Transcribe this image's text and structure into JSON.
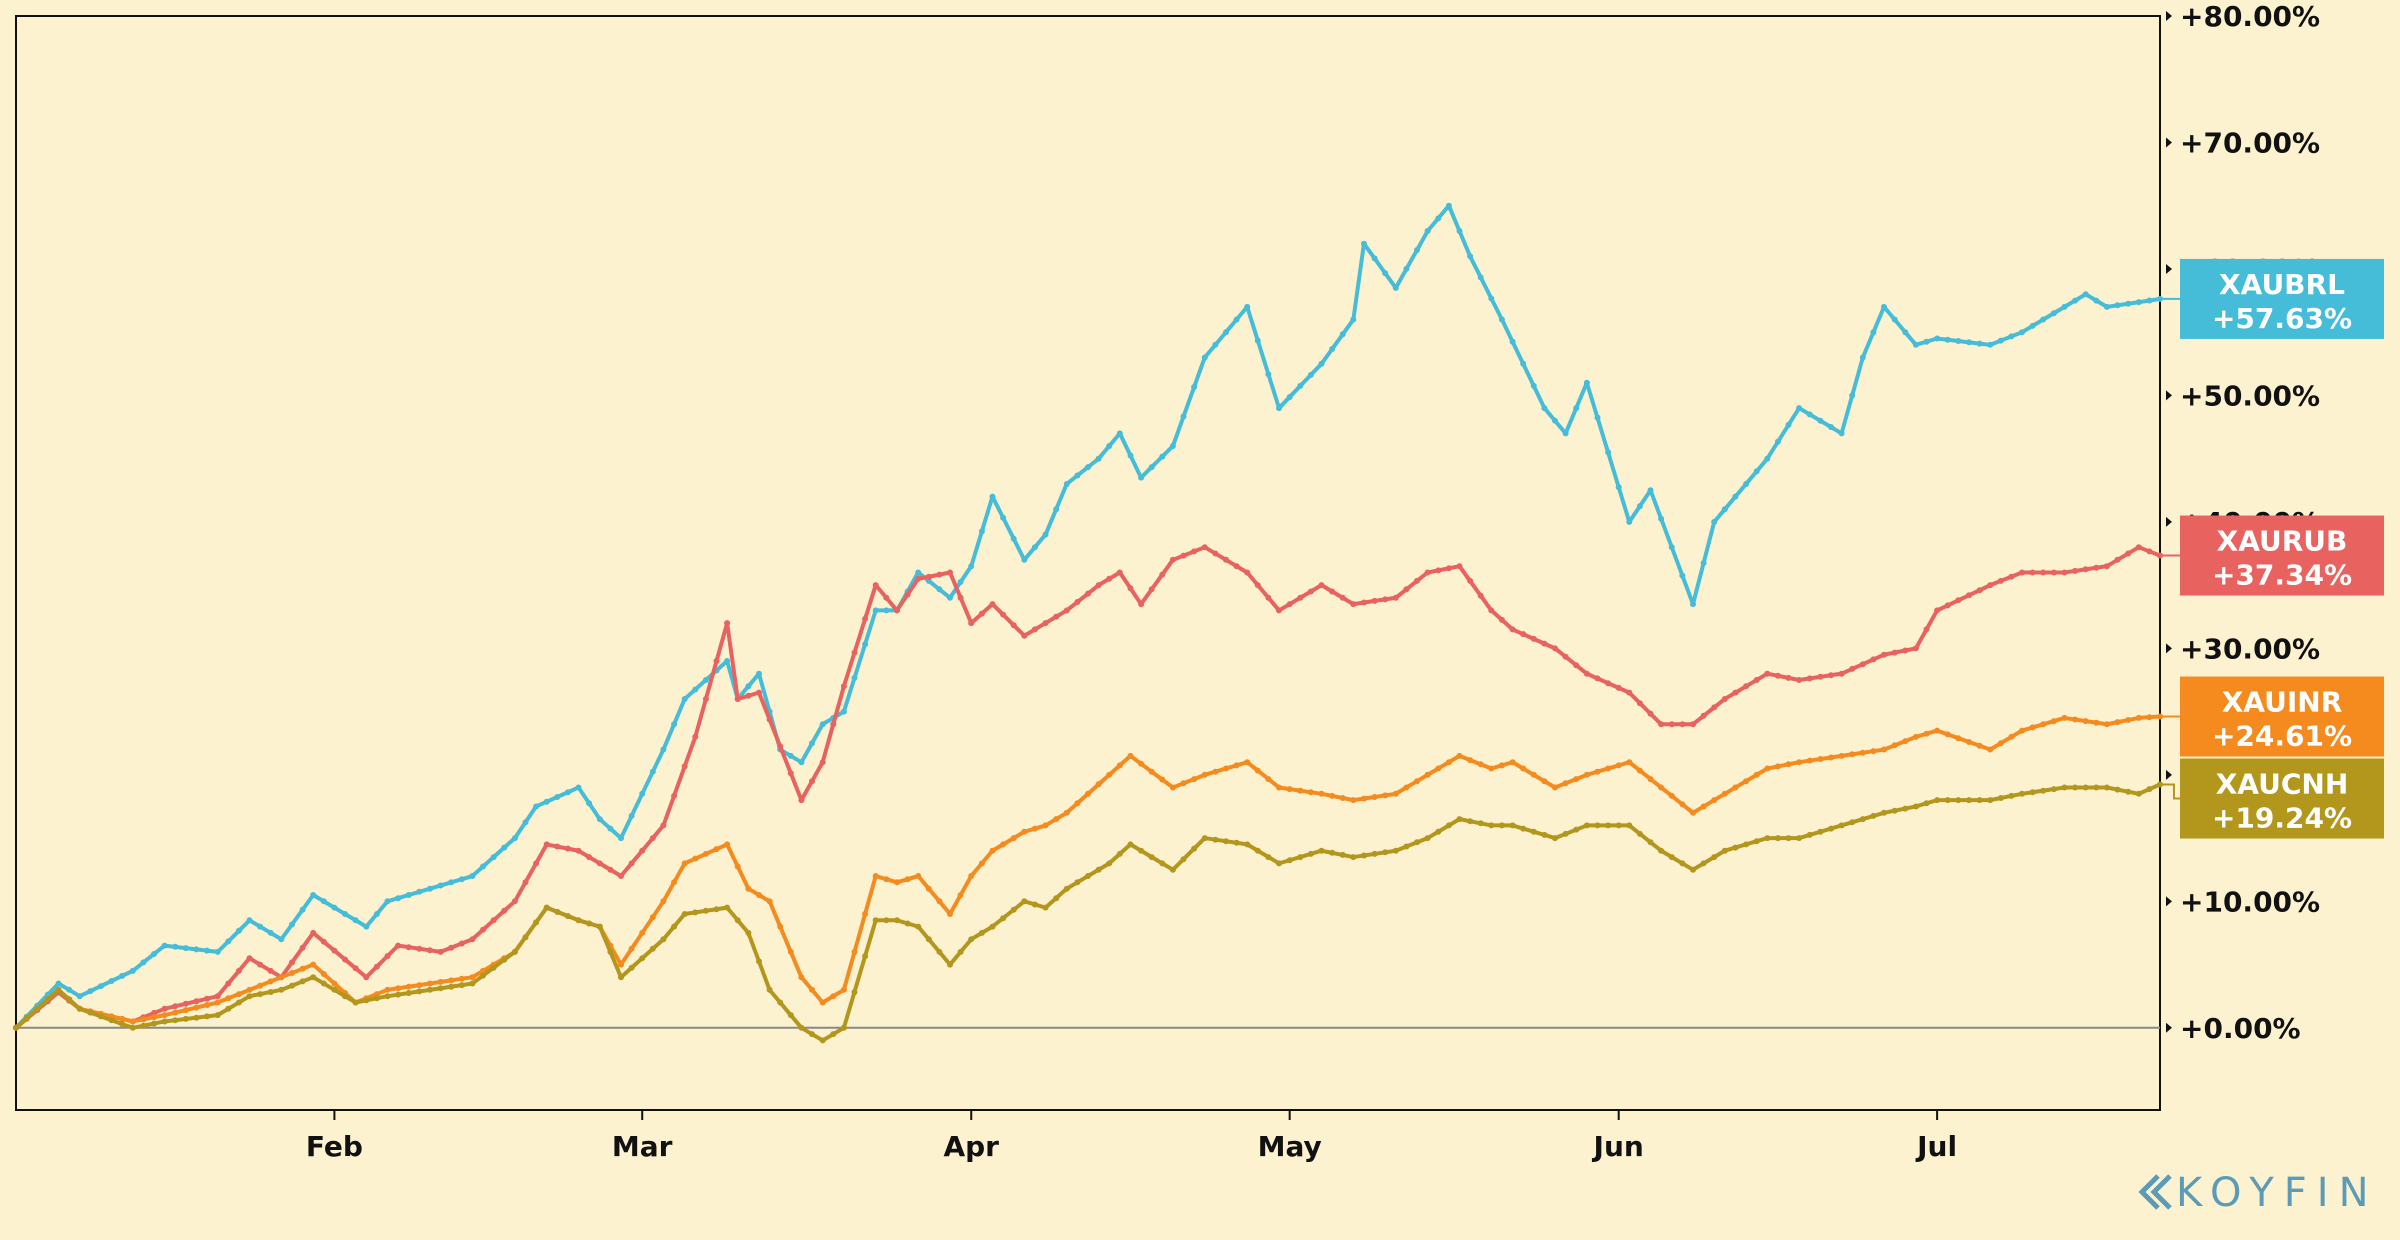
{
  "colors": {
    "background": "#fdf2cf",
    "plot_border": "#111111",
    "zero_line": "#888888",
    "XAUBRL": "#45bcd8",
    "XAURUB": "#e8625f",
    "XAUINR": "#f58a1f",
    "XAUCNH": "#b3961c",
    "logo": "#5b9bb8"
  },
  "branding": {
    "logo_text": "KOYFIN",
    "logo_icon": "koyfin-chevron-icon"
  },
  "chart_data": {
    "type": "line",
    "y_unit": "percent change",
    "ylim": [
      -6.5,
      80
    ],
    "y_ticks": [
      0,
      10,
      20,
      30,
      40,
      50,
      60,
      70,
      80
    ],
    "y_tick_labels": [
      "+0.00%",
      "+10.00%",
      "+20.00%",
      "+30.00%",
      "+40.00%",
      "+50.00%",
      "+60.00%",
      "+70.00%",
      "+80.00%"
    ],
    "y_axis_side": "right",
    "x_range": [
      "2020-01-02",
      "2020-07-22"
    ],
    "x_ticks": [
      {
        "date": "2020-02-01",
        "label": "Feb"
      },
      {
        "date": "2020-03-01",
        "label": "Mar"
      },
      {
        "date": "2020-04-01",
        "label": "Apr"
      },
      {
        "date": "2020-05-01",
        "label": "May"
      },
      {
        "date": "2020-06-01",
        "label": "Jun"
      },
      {
        "date": "2020-07-01",
        "label": "Jul"
      }
    ],
    "zero_line": true,
    "grid": false,
    "legend": "end-of-line tags on right axis",
    "series": [
      {
        "name": "XAUBRL",
        "last_label": "+57.63%",
        "last": 57.63,
        "points": [
          [
            "2020-01-02",
            0
          ],
          [
            "2020-01-06",
            3.5
          ],
          [
            "2020-01-08",
            2.5
          ],
          [
            "2020-01-13",
            4.5
          ],
          [
            "2020-01-16",
            6.5
          ],
          [
            "2020-01-21",
            6
          ],
          [
            "2020-01-24",
            8.5
          ],
          [
            "2020-01-27",
            7
          ],
          [
            "2020-01-30",
            10.5
          ],
          [
            "2020-02-04",
            8
          ],
          [
            "2020-02-06",
            10
          ],
          [
            "2020-02-10",
            11
          ],
          [
            "2020-02-14",
            12
          ],
          [
            "2020-02-18",
            15
          ],
          [
            "2020-02-20",
            17.5
          ],
          [
            "2020-02-24",
            19
          ],
          [
            "2020-02-26",
            16.5
          ],
          [
            "2020-02-28",
            15
          ],
          [
            "2020-03-03",
            22
          ],
          [
            "2020-03-05",
            26
          ],
          [
            "2020-03-09",
            29
          ],
          [
            "2020-03-10",
            26
          ],
          [
            "2020-03-12",
            28
          ],
          [
            "2020-03-14",
            22
          ],
          [
            "2020-03-16",
            21
          ],
          [
            "2020-03-18",
            24
          ],
          [
            "2020-03-20",
            25
          ],
          [
            "2020-03-23",
            33
          ],
          [
            "2020-03-25",
            33
          ],
          [
            "2020-03-27",
            36
          ],
          [
            "2020-03-30",
            34
          ],
          [
            "2020-04-01",
            36.5
          ],
          [
            "2020-04-03",
            42
          ],
          [
            "2020-04-06",
            37
          ],
          [
            "2020-04-08",
            39
          ],
          [
            "2020-04-10",
            43
          ],
          [
            "2020-04-13",
            45
          ],
          [
            "2020-04-15",
            47
          ],
          [
            "2020-04-17",
            43.5
          ],
          [
            "2020-04-20",
            46
          ],
          [
            "2020-04-23",
            53
          ],
          [
            "2020-04-27",
            57
          ],
          [
            "2020-04-30",
            49
          ],
          [
            "2020-05-04",
            52.5
          ],
          [
            "2020-05-07",
            56
          ],
          [
            "2020-05-08",
            62
          ],
          [
            "2020-05-11",
            58.5
          ],
          [
            "2020-05-14",
            63
          ],
          [
            "2020-05-16",
            65
          ],
          [
            "2020-05-18",
            61
          ],
          [
            "2020-05-21",
            56
          ],
          [
            "2020-05-25",
            49
          ],
          [
            "2020-05-27",
            47
          ],
          [
            "2020-05-29",
            51
          ],
          [
            "2020-06-02",
            40
          ],
          [
            "2020-06-04",
            42.5
          ],
          [
            "2020-06-08",
            33.5
          ],
          [
            "2020-06-10",
            40
          ],
          [
            "2020-06-15",
            45
          ],
          [
            "2020-06-18",
            49
          ],
          [
            "2020-06-22",
            47
          ],
          [
            "2020-06-24",
            53
          ],
          [
            "2020-06-26",
            57
          ],
          [
            "2020-06-29",
            54
          ],
          [
            "2020-07-01",
            54.5
          ],
          [
            "2020-07-06",
            54
          ],
          [
            "2020-07-09",
            55
          ],
          [
            "2020-07-13",
            57
          ],
          [
            "2020-07-15",
            58
          ],
          [
            "2020-07-17",
            57
          ],
          [
            "2020-07-22",
            57.63
          ]
        ]
      },
      {
        "name": "XAURUB",
        "last_label": "+37.34%",
        "last": 37.34,
        "points": [
          [
            "2020-01-02",
            0
          ],
          [
            "2020-01-06",
            2.8
          ],
          [
            "2020-01-08",
            1.5
          ],
          [
            "2020-01-13",
            0.5
          ],
          [
            "2020-01-16",
            1.5
          ],
          [
            "2020-01-21",
            2.5
          ],
          [
            "2020-01-24",
            5.5
          ],
          [
            "2020-01-27",
            4
          ],
          [
            "2020-01-30",
            7.5
          ],
          [
            "2020-02-04",
            4
          ],
          [
            "2020-02-07",
            6.5
          ],
          [
            "2020-02-11",
            6
          ],
          [
            "2020-02-14",
            7
          ],
          [
            "2020-02-18",
            10
          ],
          [
            "2020-02-21",
            14.5
          ],
          [
            "2020-02-24",
            14
          ],
          [
            "2020-02-26",
            13
          ],
          [
            "2020-02-28",
            12
          ],
          [
            "2020-03-03",
            16
          ],
          [
            "2020-03-06",
            23
          ],
          [
            "2020-03-09",
            32
          ],
          [
            "2020-03-10",
            26
          ],
          [
            "2020-03-12",
            26.5
          ],
          [
            "2020-03-16",
            18
          ],
          [
            "2020-03-18",
            21
          ],
          [
            "2020-03-20",
            27
          ],
          [
            "2020-03-23",
            35
          ],
          [
            "2020-03-25",
            33
          ],
          [
            "2020-03-27",
            35.5
          ],
          [
            "2020-03-30",
            36
          ],
          [
            "2020-04-01",
            32
          ],
          [
            "2020-04-03",
            33.5
          ],
          [
            "2020-04-06",
            31
          ],
          [
            "2020-04-08",
            32
          ],
          [
            "2020-04-10",
            33
          ],
          [
            "2020-04-13",
            35
          ],
          [
            "2020-04-15",
            36
          ],
          [
            "2020-04-17",
            33.5
          ],
          [
            "2020-04-20",
            37
          ],
          [
            "2020-04-23",
            38
          ],
          [
            "2020-04-27",
            36
          ],
          [
            "2020-04-30",
            33
          ],
          [
            "2020-05-04",
            35
          ],
          [
            "2020-05-07",
            33.5
          ],
          [
            "2020-05-11",
            34
          ],
          [
            "2020-05-14",
            36
          ],
          [
            "2020-05-17",
            36.5
          ],
          [
            "2020-05-20",
            33
          ],
          [
            "2020-05-22",
            31.5
          ],
          [
            "2020-05-26",
            30
          ],
          [
            "2020-05-29",
            28
          ],
          [
            "2020-06-02",
            26.5
          ],
          [
            "2020-06-05",
            24
          ],
          [
            "2020-06-08",
            24
          ],
          [
            "2020-06-11",
            26
          ],
          [
            "2020-06-15",
            28
          ],
          [
            "2020-06-18",
            27.5
          ],
          [
            "2020-06-22",
            28
          ],
          [
            "2020-06-26",
            29.5
          ],
          [
            "2020-06-29",
            30
          ],
          [
            "2020-07-01",
            33
          ],
          [
            "2020-07-06",
            35
          ],
          [
            "2020-07-09",
            36
          ],
          [
            "2020-07-13",
            36
          ],
          [
            "2020-07-17",
            36.5
          ],
          [
            "2020-07-20",
            38
          ],
          [
            "2020-07-22",
            37.34
          ]
        ]
      },
      {
        "name": "XAUINR",
        "last_label": "+24.61%",
        "last": 24.61,
        "points": [
          [
            "2020-01-02",
            0
          ],
          [
            "2020-01-06",
            3
          ],
          [
            "2020-01-08",
            1.5
          ],
          [
            "2020-01-13",
            0.5
          ],
          [
            "2020-01-16",
            1
          ],
          [
            "2020-01-21",
            2
          ],
          [
            "2020-01-24",
            3
          ],
          [
            "2020-01-27",
            4
          ],
          [
            "2020-01-30",
            5
          ],
          [
            "2020-02-03",
            2
          ],
          [
            "2020-02-06",
            3
          ],
          [
            "2020-02-10",
            3.5
          ],
          [
            "2020-02-14",
            4
          ],
          [
            "2020-02-18",
            6
          ],
          [
            "2020-02-21",
            9.5
          ],
          [
            "2020-02-24",
            8.5
          ],
          [
            "2020-02-26",
            8
          ],
          [
            "2020-02-28",
            5
          ],
          [
            "2020-03-03",
            10
          ],
          [
            "2020-03-05",
            13
          ],
          [
            "2020-03-09",
            14.5
          ],
          [
            "2020-03-11",
            11
          ],
          [
            "2020-03-13",
            10
          ],
          [
            "2020-03-16",
            4
          ],
          [
            "2020-03-18",
            2
          ],
          [
            "2020-03-20",
            3
          ],
          [
            "2020-03-23",
            12
          ],
          [
            "2020-03-25",
            11.5
          ],
          [
            "2020-03-27",
            12
          ],
          [
            "2020-03-30",
            9
          ],
          [
            "2020-04-01",
            12
          ],
          [
            "2020-04-03",
            14
          ],
          [
            "2020-04-06",
            15.5
          ],
          [
            "2020-04-08",
            16
          ],
          [
            "2020-04-10",
            17
          ],
          [
            "2020-04-14",
            20
          ],
          [
            "2020-04-16",
            21.5
          ],
          [
            "2020-04-20",
            19
          ],
          [
            "2020-04-23",
            20
          ],
          [
            "2020-04-27",
            21
          ],
          [
            "2020-04-30",
            19
          ],
          [
            "2020-05-04",
            18.5
          ],
          [
            "2020-05-07",
            18
          ],
          [
            "2020-05-11",
            18.5
          ],
          [
            "2020-05-14",
            20
          ],
          [
            "2020-05-17",
            21.5
          ],
          [
            "2020-05-20",
            20.5
          ],
          [
            "2020-05-22",
            21
          ],
          [
            "2020-05-26",
            19
          ],
          [
            "2020-05-29",
            20
          ],
          [
            "2020-06-02",
            21
          ],
          [
            "2020-06-05",
            19
          ],
          [
            "2020-06-08",
            17
          ],
          [
            "2020-06-11",
            18.5
          ],
          [
            "2020-06-15",
            20.5
          ],
          [
            "2020-06-18",
            21
          ],
          [
            "2020-06-22",
            21.5
          ],
          [
            "2020-06-26",
            22
          ],
          [
            "2020-06-29",
            23
          ],
          [
            "2020-07-01",
            23.5
          ],
          [
            "2020-07-06",
            22
          ],
          [
            "2020-07-09",
            23.5
          ],
          [
            "2020-07-13",
            24.5
          ],
          [
            "2020-07-17",
            24
          ],
          [
            "2020-07-20",
            24.5
          ],
          [
            "2020-07-22",
            24.61
          ]
        ]
      },
      {
        "name": "XAUCNH",
        "last_label": "+19.24%",
        "last": 19.24,
        "points": [
          [
            "2020-01-02",
            0
          ],
          [
            "2020-01-06",
            3
          ],
          [
            "2020-01-08",
            1.5
          ],
          [
            "2020-01-13",
            0
          ],
          [
            "2020-01-16",
            0.5
          ],
          [
            "2020-01-21",
            1
          ],
          [
            "2020-01-24",
            2.5
          ],
          [
            "2020-01-27",
            3
          ],
          [
            "2020-01-30",
            4
          ],
          [
            "2020-02-03",
            2
          ],
          [
            "2020-02-06",
            2.5
          ],
          [
            "2020-02-10",
            3
          ],
          [
            "2020-02-14",
            3.5
          ],
          [
            "2020-02-18",
            6
          ],
          [
            "2020-02-21",
            9.5
          ],
          [
            "2020-02-24",
            8.5
          ],
          [
            "2020-02-26",
            8
          ],
          [
            "2020-02-28",
            4
          ],
          [
            "2020-03-03",
            7
          ],
          [
            "2020-03-05",
            9
          ],
          [
            "2020-03-09",
            9.5
          ],
          [
            "2020-03-11",
            7.5
          ],
          [
            "2020-03-13",
            3
          ],
          [
            "2020-03-16",
            0
          ],
          [
            "2020-03-18",
            -1
          ],
          [
            "2020-03-20",
            0
          ],
          [
            "2020-03-23",
            8.5
          ],
          [
            "2020-03-25",
            8.5
          ],
          [
            "2020-03-27",
            8
          ],
          [
            "2020-03-30",
            5
          ],
          [
            "2020-04-01",
            7
          ],
          [
            "2020-04-03",
            8
          ],
          [
            "2020-04-06",
            10
          ],
          [
            "2020-04-08",
            9.5
          ],
          [
            "2020-04-10",
            11
          ],
          [
            "2020-04-14",
            13
          ],
          [
            "2020-04-16",
            14.5
          ],
          [
            "2020-04-20",
            12.5
          ],
          [
            "2020-04-23",
            15
          ],
          [
            "2020-04-27",
            14.5
          ],
          [
            "2020-04-30",
            13
          ],
          [
            "2020-05-04",
            14
          ],
          [
            "2020-05-07",
            13.5
          ],
          [
            "2020-05-11",
            14
          ],
          [
            "2020-05-14",
            15
          ],
          [
            "2020-05-17",
            16.5
          ],
          [
            "2020-05-20",
            16
          ],
          [
            "2020-05-22",
            16
          ],
          [
            "2020-05-26",
            15
          ],
          [
            "2020-05-29",
            16
          ],
          [
            "2020-06-02",
            16
          ],
          [
            "2020-06-05",
            14
          ],
          [
            "2020-06-08",
            12.5
          ],
          [
            "2020-06-11",
            14
          ],
          [
            "2020-06-15",
            15
          ],
          [
            "2020-06-18",
            15
          ],
          [
            "2020-06-22",
            16
          ],
          [
            "2020-06-26",
            17
          ],
          [
            "2020-06-29",
            17.5
          ],
          [
            "2020-07-01",
            18
          ],
          [
            "2020-07-06",
            18
          ],
          [
            "2020-07-09",
            18.5
          ],
          [
            "2020-07-13",
            19
          ],
          [
            "2020-07-17",
            19
          ],
          [
            "2020-07-20",
            18.5
          ],
          [
            "2020-07-22",
            19.24
          ]
        ]
      }
    ]
  }
}
